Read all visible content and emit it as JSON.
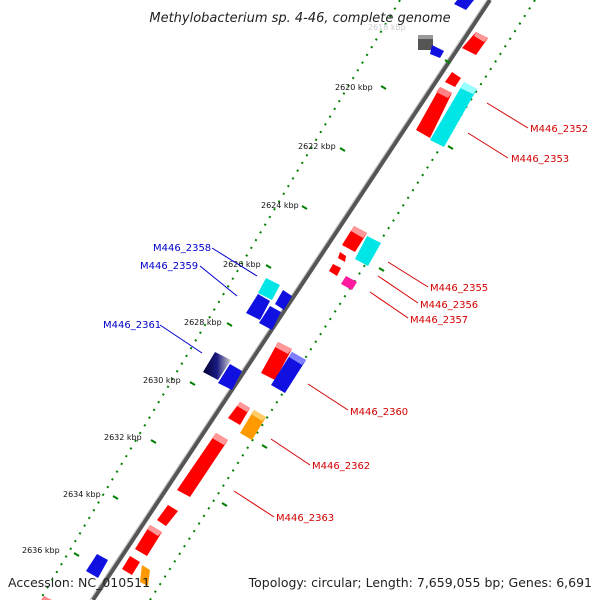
{
  "title": "Methylobacterium sp. 4-46, complete genome",
  "accession_text": "Accession: NC_010511",
  "summary_text": "Topology: circular; Length: 7,659,055 bp; Genes: 6,691",
  "scale_labels": [
    "2620 kbp",
    "2622 kbp",
    "2624 kbp",
    "2626 kbp",
    "2628 kbp",
    "2630 kbp",
    "2632 kbp",
    "2634 kbp",
    "2636 kbp"
  ],
  "colors": {
    "red": "#ff0000",
    "cyan": "#00e5e5",
    "blue": "#1010e0",
    "magenta": "#ff1aa0",
    "orange": "#ff9900",
    "grey": "#666666",
    "dashes": "#008000"
  },
  "gene_labels": {
    "M446_2352": "M446_2352",
    "M446_2353": "M446_2353",
    "M446_2355": "M446_2355",
    "M446_2356": "M446_2356",
    "M446_2357": "M446_2357",
    "M446_2358": "M446_2358",
    "M446_2359": "M446_2359",
    "M446_2360": "M446_2360",
    "M446_2361": "M446_2361",
    "M446_2362": "M446_2362",
    "M446_2363": "M446_2363"
  }
}
